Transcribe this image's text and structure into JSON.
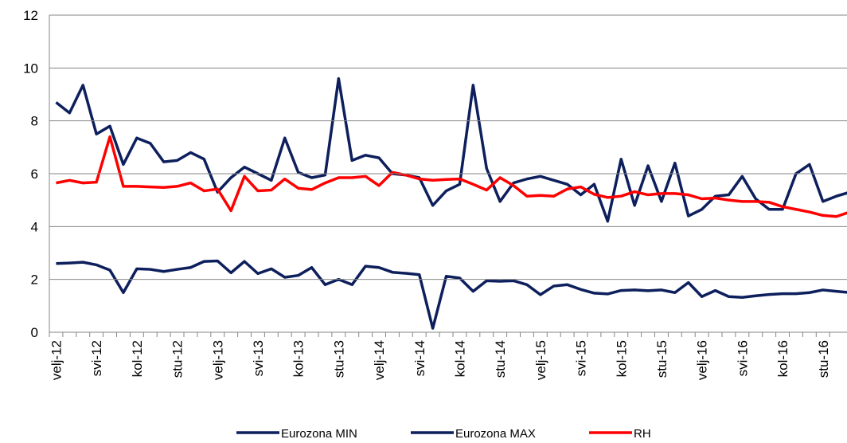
{
  "chart_data": {
    "type": "line",
    "categories": [
      "velj-12",
      null,
      null,
      "svi-12",
      null,
      null,
      "kol-12",
      null,
      null,
      "stu-12",
      null,
      null,
      "velj-13",
      null,
      null,
      "svi-13",
      null,
      null,
      "kol-13",
      null,
      null,
      "stu-13",
      null,
      null,
      "velj-14",
      null,
      null,
      "svi-14",
      null,
      null,
      "kol-14",
      null,
      null,
      "stu-14",
      null,
      null,
      "velj-15",
      null,
      null,
      "svi-15",
      null,
      null,
      "kol-15",
      null,
      null,
      "stu-15",
      null,
      null,
      "velj-16",
      null,
      null,
      "svi-16",
      null,
      null,
      "kol-16",
      null,
      null,
      "stu-16",
      null,
      null
    ],
    "series": [
      {
        "name": "Eurozona MIN",
        "color": "#0d1f5c",
        "values": [
          2.6,
          2.62,
          2.65,
          2.55,
          2.35,
          1.5,
          2.4,
          2.38,
          2.3,
          2.38,
          2.45,
          2.68,
          2.7,
          2.25,
          2.68,
          2.22,
          2.4,
          2.08,
          2.15,
          2.45,
          1.8,
          2.0,
          1.8,
          2.5,
          2.45,
          2.27,
          2.23,
          2.18,
          0.15,
          2.12,
          2.05,
          1.55,
          1.95,
          1.93,
          1.95,
          1.8,
          1.42,
          1.75,
          1.8,
          1.62,
          1.48,
          1.45,
          1.58,
          1.6,
          1.57,
          1.6,
          1.5,
          1.88,
          1.35,
          1.58,
          1.35,
          1.32,
          1.38,
          1.43,
          1.46,
          1.46,
          1.5,
          1.6,
          1.55,
          1.5
        ]
      },
      {
        "name": "Eurozona MAX",
        "color": "#0d1f5c",
        "values": [
          8.7,
          8.3,
          9.35,
          7.5,
          7.8,
          6.35,
          7.35,
          7.15,
          6.45,
          6.5,
          6.8,
          6.55,
          5.3,
          5.85,
          6.25,
          6.0,
          5.75,
          7.35,
          6.05,
          5.85,
          5.95,
          9.6,
          6.5,
          6.7,
          6.6,
          6.0,
          5.95,
          5.85,
          4.8,
          5.35,
          5.6,
          9.35,
          6.2,
          4.95,
          5.65,
          5.8,
          5.9,
          5.75,
          5.6,
          5.2,
          5.6,
          4.2,
          6.55,
          4.8,
          6.3,
          4.95,
          6.4,
          4.4,
          4.65,
          5.15,
          5.2,
          5.9,
          5.05,
          4.65,
          4.65,
          6.0,
          6.35,
          4.95,
          5.15,
          5.3
        ]
      },
      {
        "name": "RH",
        "color": "#ff0000",
        "values": [
          5.65,
          5.75,
          5.65,
          5.68,
          7.4,
          5.52,
          5.52,
          5.5,
          5.48,
          5.52,
          5.65,
          5.35,
          5.42,
          4.6,
          5.9,
          5.35,
          5.38,
          5.8,
          5.45,
          5.4,
          5.65,
          5.85,
          5.85,
          5.9,
          5.55,
          6.05,
          5.95,
          5.8,
          5.75,
          5.78,
          5.8,
          5.6,
          5.38,
          5.85,
          5.55,
          5.15,
          5.18,
          5.15,
          5.42,
          5.5,
          5.22,
          5.1,
          5.15,
          5.32,
          5.2,
          5.25,
          5.25,
          5.2,
          5.05,
          5.08,
          5.0,
          4.95,
          4.95,
          4.92,
          4.75,
          4.65,
          4.55,
          4.42,
          4.38,
          4.55
        ]
      }
    ],
    "ylim": [
      0,
      12
    ],
    "yticks": [
      0,
      2,
      4,
      6,
      8,
      10,
      12
    ],
    "grid": true,
    "legend": "bottom"
  }
}
